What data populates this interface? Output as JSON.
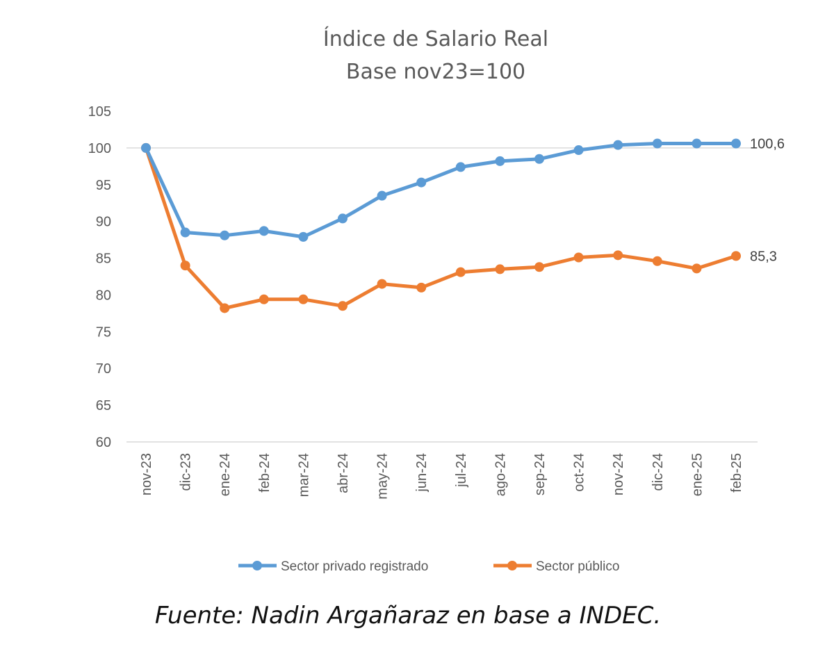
{
  "chart_data": {
    "type": "line",
    "title": "Índice de Salario Real",
    "subtitle": "Base nov23=100",
    "categories": [
      "nov-23",
      "dic-23",
      "ene-24",
      "feb-24",
      "mar-24",
      "abr-24",
      "may-24",
      "jun-24",
      "jul-24",
      "ago-24",
      "sep-24",
      "oct-24",
      "nov-24",
      "dic-24",
      "ene-25",
      "feb-25"
    ],
    "ylim": [
      60,
      105
    ],
    "yticks": [
      60,
      65,
      70,
      75,
      80,
      85,
      90,
      95,
      100,
      105
    ],
    "grid": false,
    "reference_line": 100,
    "legend_position": "bottom",
    "series": [
      {
        "name": "Sector privado registrado",
        "color": "#5b9bd5",
        "values": [
          100,
          88.5,
          88.1,
          88.7,
          87.9,
          90.4,
          93.5,
          95.3,
          97.4,
          98.2,
          98.5,
          99.7,
          100.4,
          100.6,
          100.6,
          100.6
        ],
        "end_label": "100,6"
      },
      {
        "name": "Sector público",
        "color": "#ed7d31",
        "values": [
          100,
          84.0,
          78.2,
          79.4,
          79.4,
          78.5,
          81.5,
          81.0,
          83.1,
          83.5,
          83.8,
          85.1,
          85.4,
          84.6,
          83.6,
          85.3
        ],
        "end_label": "85,3"
      }
    ]
  },
  "source": "Fuente: Nadin Argañaraz en base a INDEC."
}
